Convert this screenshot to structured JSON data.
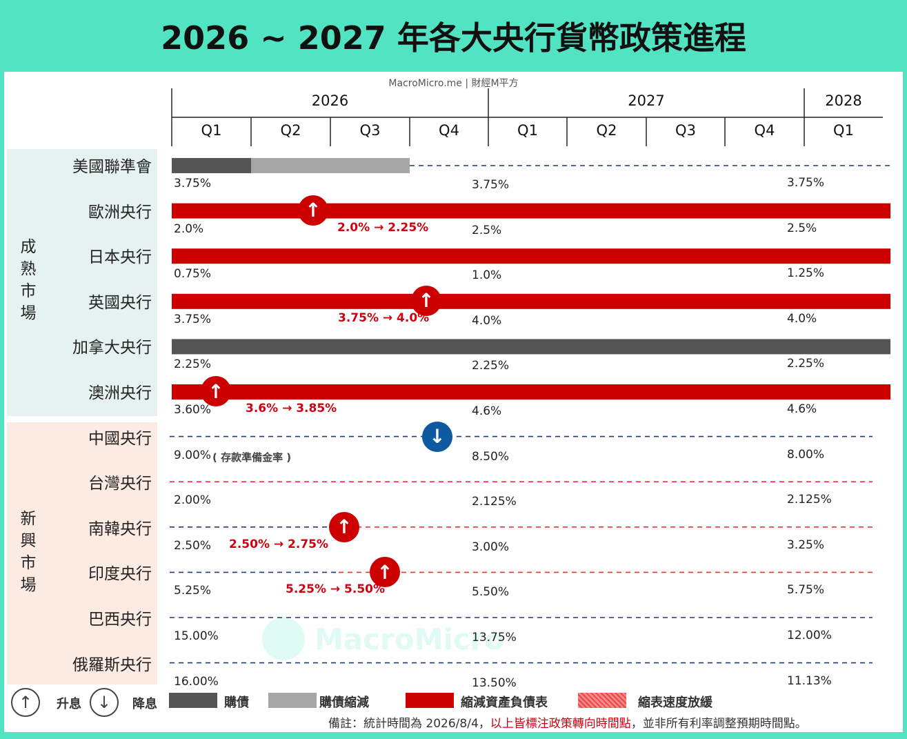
{
  "title": "2026 ~ 2027 年各大央行貨幣政策進程",
  "source": "MacroMicro.me | 財經M平方",
  "watermark": "MacroMicro",
  "colors": {
    "qe": "#555555",
    "qe_taper": "#a6a6a6",
    "qt": "#cc0000",
    "qt_slow": "#f08a8a",
    "hike": "#cc0000",
    "cut": "#0d5aa0",
    "dash_navy": "#1f3a6b",
    "dash_red": "#e8323a",
    "mature_bg": "#e6f2f0",
    "emerging_bg": "#fcebe2"
  },
  "header": {
    "years": [
      "2026",
      "2027",
      "2028"
    ],
    "quarters": [
      "Q1",
      "Q2",
      "Q3",
      "Q4",
      "Q1",
      "Q2",
      "Q3",
      "Q4",
      "Q1"
    ]
  },
  "groups": [
    {
      "label": "成熟市場",
      "chars": [
        "成",
        "熟",
        "市",
        "場"
      ]
    },
    {
      "label": "新興市場",
      "chars": [
        "新",
        "興",
        "市",
        "場"
      ]
    }
  ],
  "banks": [
    {
      "name": "美國聯準會",
      "rates": [
        "3.75%",
        "3.75%",
        "3.75%"
      ],
      "note": ""
    },
    {
      "name": "歐洲央行",
      "rates": [
        "2.0%",
        "2.5%",
        "2.5%"
      ],
      "note": "2.0% → 2.25%"
    },
    {
      "name": "日本央行",
      "rates": [
        "0.75%",
        "1.0%",
        "1.25%"
      ],
      "note": ""
    },
    {
      "name": "英國央行",
      "rates": [
        "3.75%",
        "4.0%",
        "4.0%"
      ],
      "note": "3.75% → 4.0%"
    },
    {
      "name": "加拿大央行",
      "rates": [
        "2.25%",
        "2.25%",
        "2.25%"
      ],
      "note": ""
    },
    {
      "name": "澳洲央行",
      "rates": [
        "3.60%",
        "4.6%",
        "4.6%"
      ],
      "note": "3.6% → 3.85%"
    },
    {
      "name": "中國央行",
      "rates": [
        "9.00%",
        "8.50%",
        "8.00%"
      ],
      "note": "",
      "sub": "( 存款準備金率 )"
    },
    {
      "name": "台灣央行",
      "rates": [
        "2.00%",
        "2.125%",
        "2.125%"
      ],
      "note": ""
    },
    {
      "name": "南韓央行",
      "rates": [
        "2.50%",
        "3.00%",
        "3.25%"
      ],
      "note": "2.50% → 2.75%"
    },
    {
      "name": "印度央行",
      "rates": [
        "5.25%",
        "5.50%",
        "5.75%"
      ],
      "note": "5.25% → 5.50%"
    },
    {
      "name": "巴西央行",
      "rates": [
        "15.00%",
        "13.75%",
        "12.00%"
      ],
      "note": ""
    },
    {
      "name": "俄羅斯央行",
      "rates": [
        "16.00%",
        "13.50%",
        "11.13%"
      ],
      "note": ""
    }
  ],
  "arrows": [
    {
      "bank": "歐洲央行",
      "dir": "↑",
      "kind": "hike"
    },
    {
      "bank": "英國央行",
      "dir": "↑",
      "kind": "hike"
    },
    {
      "bank": "澳洲央行",
      "dir": "↑",
      "kind": "hike"
    },
    {
      "bank": "中國央行",
      "dir": "↓",
      "kind": "cut"
    },
    {
      "bank": "南韓央行",
      "dir": "↑",
      "kind": "hike"
    },
    {
      "bank": "印度央行",
      "dir": "↑",
      "kind": "hike"
    }
  ],
  "legend": {
    "hike_icon": "↑",
    "hike": "升息",
    "cut_icon": "↓",
    "cut": "降息",
    "qe": "購債",
    "qe_taper": "購債縮減",
    "qt": "縮減資產負債表",
    "qt_slow": "縮表速度放緩"
  },
  "footnote": {
    "prefix": "備註：統計時間為 2026/8/4，",
    "highlight": "以上皆標注政策轉向時間點",
    "suffix": "，並非所有利率調整預期時間點。"
  },
  "chart_data": {
    "type": "table",
    "title": "2026 ~ 2027 年各大央行貨幣政策進程",
    "columns": [
      "2026 Q1",
      "2026 Q2",
      "2026 Q3",
      "2026 Q4",
      "2027 Q1",
      "2027 Q2",
      "2027 Q3",
      "2027 Q4",
      "2028 Q1"
    ],
    "rows": [
      {
        "bank": "美國聯準會",
        "group": "成熟市場",
        "policy": [
          {
            "from": "2026 Q1",
            "to": "2026 Q1",
            "kind": "購債"
          },
          {
            "from": "2026 Q2",
            "to": "2026 Q3",
            "kind": "購債縮減"
          }
        ],
        "rate_points": {
          "2026 Q1": "3.75%",
          "2027 Q1": "3.75%",
          "2028 Q1": "3.75%"
        }
      },
      {
        "bank": "歐洲央行",
        "group": "成熟市場",
        "policy": [
          {
            "from": "2026 Q1",
            "to": "2028 Q1",
            "kind": "縮減資產負債表"
          }
        ],
        "turn": {
          "at": "2026 Q2",
          "dir": "升息",
          "note": "2.0% → 2.25%"
        },
        "rate_points": {
          "2026 Q1": "2.0%",
          "2027 Q1": "2.5%",
          "2028 Q1": "2.5%"
        }
      },
      {
        "bank": "日本央行",
        "group": "成熟市場",
        "policy": [
          {
            "from": "2026 Q1",
            "to": "2028 Q1",
            "kind": "縮減資產負債表"
          }
        ],
        "rate_points": {
          "2026 Q1": "0.75%",
          "2027 Q1": "1.0%",
          "2028 Q1": "1.25%"
        }
      },
      {
        "bank": "英國央行",
        "group": "成熟市場",
        "policy": [
          {
            "from": "2026 Q1",
            "to": "2028 Q1",
            "kind": "縮減資產負債表"
          }
        ],
        "turn": {
          "at": "2026 Q4",
          "dir": "升息",
          "note": "3.75% → 4.0%"
        },
        "rate_points": {
          "2026 Q1": "3.75%",
          "2027 Q1": "4.0%",
          "2028 Q1": "4.0%"
        }
      },
      {
        "bank": "加拿大央行",
        "group": "成熟市場",
        "policy": [
          {
            "from": "2026 Q1",
            "to": "2028 Q1",
            "kind": "購債"
          }
        ],
        "rate_points": {
          "2026 Q1": "2.25%",
          "2027 Q1": "2.25%",
          "2028 Q1": "2.25%"
        }
      },
      {
        "bank": "澳洲央行",
        "group": "成熟市場",
        "policy": [
          {
            "from": "2026 Q1",
            "to": "2028 Q1",
            "kind": "縮減資產負債表"
          }
        ],
        "turn": {
          "at": "2026 Q1",
          "dir": "升息",
          "note": "3.6% → 3.85%"
        },
        "rate_points": {
          "2026 Q1": "3.60%",
          "2027 Q1": "4.6%",
          "2028 Q1": "4.6%"
        }
      },
      {
        "bank": "中國央行",
        "group": "新興市場",
        "turn": {
          "at": "2026 Q4",
          "dir": "降息"
        },
        "rate_points": {
          "2026 Q1": "9.00%",
          "2027 Q1": "8.50%",
          "2028 Q1": "8.00%"
        }
      },
      {
        "bank": "台灣央行",
        "group": "新興市場",
        "rate_points": {
          "2026 Q1": "2.00%",
          "2027 Q1": "2.125%",
          "2028 Q1": "2.125%"
        }
      },
      {
        "bank": "南韓央行",
        "group": "新興市場",
        "turn": {
          "at": "2026 Q3",
          "dir": "升息",
          "note": "2.50% → 2.75%"
        },
        "rate_points": {
          "2026 Q1": "2.50%",
          "2027 Q1": "3.00%",
          "2028 Q1": "3.25%"
        }
      },
      {
        "bank": "印度央行",
        "group": "新興市場",
        "turn": {
          "at": "2026 Q3",
          "dir": "升息",
          "note": "5.25% → 5.50%"
        },
        "rate_points": {
          "2026 Q1": "5.25%",
          "2027 Q1": "5.50%",
          "2028 Q1": "5.75%"
        }
      },
      {
        "bank": "巴西央行",
        "group": "新興市場",
        "rate_points": {
          "2026 Q1": "15.00%",
          "2027 Q1": "13.75%",
          "2028 Q1": "12.00%"
        }
      },
      {
        "bank": "俄羅斯央行",
        "group": "新興市場",
        "rate_points": {
          "2026 Q1": "16.00%",
          "2027 Q1": "13.50%",
          "2028 Q1": "11.13%"
        }
      }
    ]
  }
}
